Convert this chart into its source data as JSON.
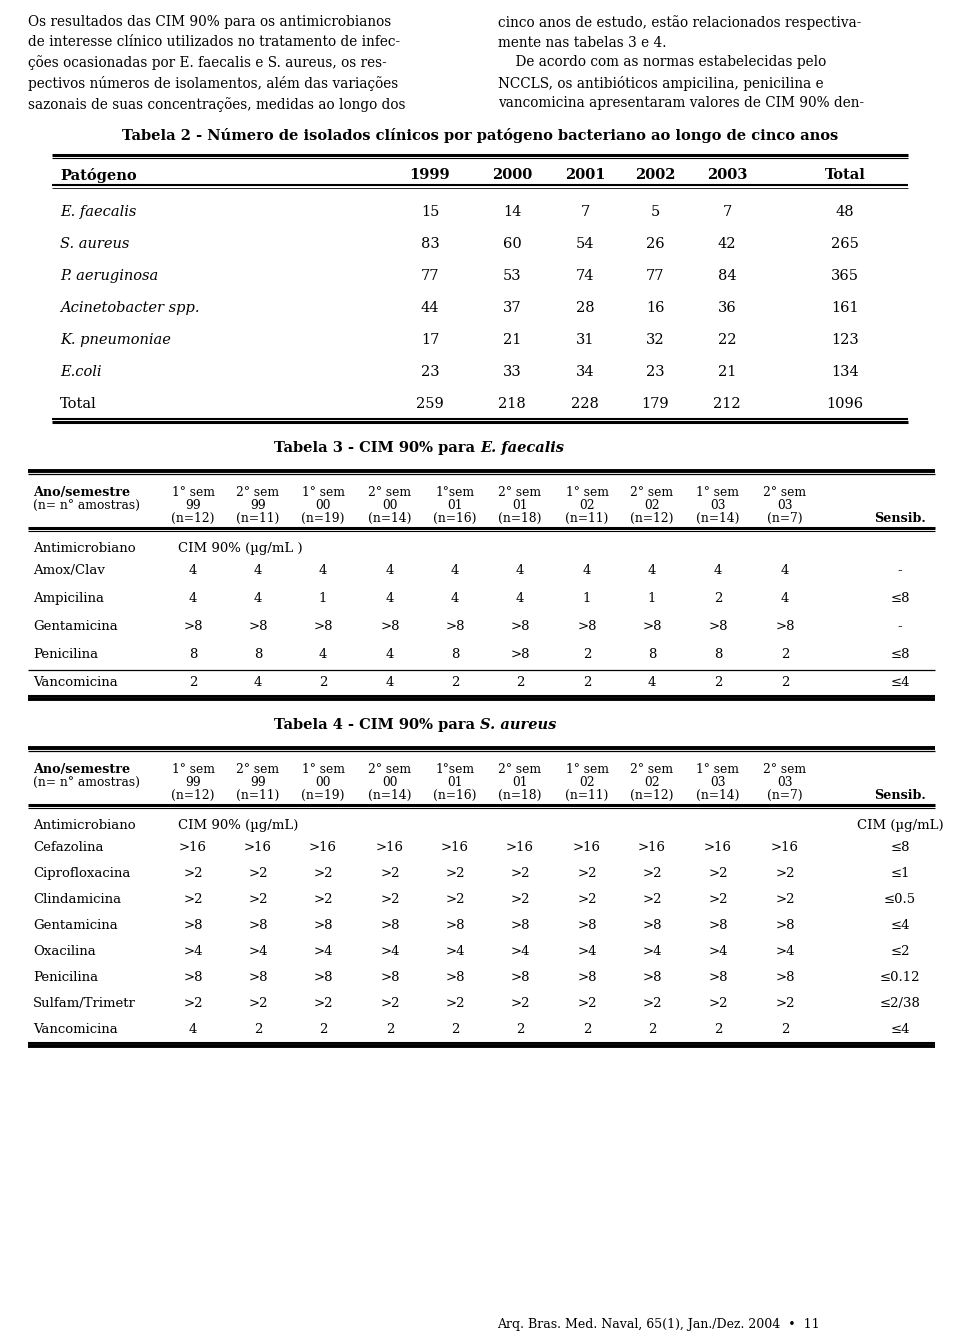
{
  "table2_title": "Tabela 2 - Número de isolados clínicos por patógeno bacteriano ao longo de cinco anos",
  "table2_headers": [
    "Patógeno",
    "1999",
    "2000",
    "2001",
    "2002",
    "2003",
    "Total"
  ],
  "table2_rows": [
    [
      "E. faecalis",
      "15",
      "14",
      "7",
      "5",
      "7",
      "48"
    ],
    [
      "S. aureus",
      "83",
      "60",
      "54",
      "26",
      "42",
      "265"
    ],
    [
      "P. aeruginosa",
      "77",
      "53",
      "74",
      "77",
      "84",
      "365"
    ],
    [
      "Acinetobacter spp.",
      "44",
      "37",
      "28",
      "16",
      "36",
      "161"
    ],
    [
      "K. pneumoniae",
      "17",
      "21",
      "31",
      "32",
      "22",
      "123"
    ],
    [
      "E.coli",
      "23",
      "33",
      "34",
      "23",
      "21",
      "134"
    ],
    [
      "Total",
      "259",
      "218",
      "228",
      "179",
      "212",
      "1096"
    ]
  ],
  "table2_row_italic": [
    true,
    true,
    true,
    true,
    true,
    true,
    false
  ],
  "table3_col_headers_line1": [
    "1° sem",
    "2° sem",
    "1° sem",
    "2° sem",
    "1°sem",
    "2° sem",
    "1° sem",
    "2° sem",
    "1° sem",
    "2° sem"
  ],
  "table3_col_headers_line2": [
    "99",
    "99",
    "00",
    "00",
    "01",
    "01",
    "02",
    "02",
    "03",
    "03"
  ],
  "table3_col_headers_line3": [
    "(n=12)",
    "(n=11)",
    "(n=19)",
    "(n=14)",
    "(n=16)",
    "(n=18)",
    "(n=11)",
    "(n=12)",
    "(n=14)",
    "(n=7)"
  ],
  "table3_cim_label": "CIM 90% (µg/mL )",
  "table3_rows": [
    [
      "Amox/Clav",
      "4",
      "4",
      "4",
      "4",
      "4",
      "4",
      "4",
      "4",
      "4",
      "4",
      "-"
    ],
    [
      "Ampicilina",
      "4",
      "4",
      "1",
      "4",
      "4",
      "4",
      "1",
      "1",
      "2",
      "4",
      "≤8"
    ],
    [
      "Gentamicina",
      ">8",
      ">8",
      ">8",
      ">8",
      ">8",
      ">8",
      ">8",
      ">8",
      ">8",
      ">8",
      "-"
    ],
    [
      "Penicilina",
      "8",
      "8",
      "4",
      "4",
      "8",
      ">8",
      "2",
      "8",
      "8",
      "2",
      "≤8"
    ],
    [
      "Vancomicina",
      "2",
      "4",
      "2",
      "4",
      "2",
      "2",
      "2",
      "4",
      "2",
      "2",
      "≤4"
    ]
  ],
  "table4_cim_label": "CIM 90% (µg/mL)",
  "table4_cim_label2": "CIM (µg/mL)",
  "table4_rows": [
    [
      "Cefazolina",
      ">16",
      ">16",
      ">16",
      ">16",
      ">16",
      ">16",
      ">16",
      ">16",
      ">16",
      ">16",
      "≤8"
    ],
    [
      "Ciprofloxacina",
      ">2",
      ">2",
      ">2",
      ">2",
      ">2",
      ">2",
      ">2",
      ">2",
      ">2",
      ">2",
      "≤1"
    ],
    [
      "Clindamicina",
      ">2",
      ">2",
      ">2",
      ">2",
      ">2",
      ">2",
      ">2",
      ">2",
      ">2",
      ">2",
      "≤0.5"
    ],
    [
      "Gentamicina",
      ">8",
      ">8",
      ">8",
      ">8",
      ">8",
      ">8",
      ">8",
      ">8",
      ">8",
      ">8",
      "≤4"
    ],
    [
      "Oxacilina",
      ">4",
      ">4",
      ">4",
      ">4",
      ">4",
      ">4",
      ">4",
      ">4",
      ">4",
      ">4",
      "≤2"
    ],
    [
      "Penicilina",
      ">8",
      ">8",
      ">8",
      ">8",
      ">8",
      ">8",
      ">8",
      ">8",
      ">8",
      ">8",
      "≤0.12"
    ],
    [
      "Sulfam/Trimetr",
      ">2",
      ">2",
      ">2",
      ">2",
      ">2",
      ">2",
      ">2",
      ">2",
      ">2",
      ">2",
      "≤2/38"
    ],
    [
      "Vancomicina",
      "4",
      "2",
      "2",
      "2",
      "2",
      "2",
      "2",
      "2",
      "2",
      "2",
      "≤4"
    ]
  ],
  "footer": "Arq. Bras. Med. Naval, 65(1), Jan./Dez. 2004  •  11",
  "bg_color": "#ffffff"
}
